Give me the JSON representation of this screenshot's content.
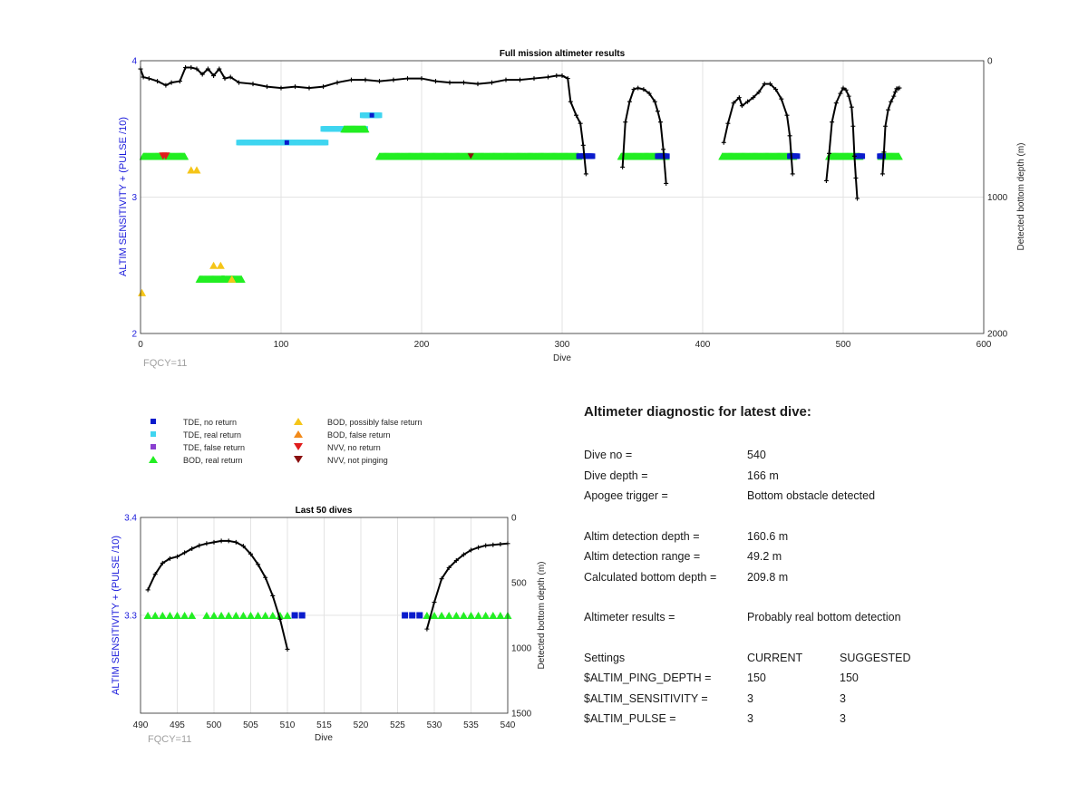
{
  "chart_data": [
    {
      "type": "scatter",
      "title": "Full mission altimeter results",
      "xlabel": "Dive",
      "ylabel": "ALTIM SENSITIVITY + (PULSE /10)",
      "y2label": "Detected bottom depth (m)",
      "xlim": [
        0,
        600
      ],
      "ylim": [
        2,
        4
      ],
      "y2lim": [
        0,
        2000
      ],
      "y2_reversed": true,
      "xticks": [
        "0",
        "100",
        "200",
        "300",
        "400",
        "500",
        "600"
      ],
      "yticks": [
        "2",
        "3",
        "4"
      ],
      "y2ticks": [
        "0",
        "1000",
        "2000"
      ],
      "grid": true,
      "annotation": "FQCY=11",
      "bod_real_segments": [
        {
          "x": [
            2,
            32
          ],
          "y": 3.3
        },
        {
          "x": [
            42,
            60
          ],
          "y": 2.4
        },
        {
          "x": [
            58,
            72
          ],
          "y": 2.4
        },
        {
          "x": [
            145,
            160
          ],
          "y": 3.5
        },
        {
          "x": [
            170,
            312
          ],
          "y": 3.3
        },
        {
          "x": [
            342,
            374
          ],
          "y": 3.3
        },
        {
          "x": [
            414,
            465
          ],
          "y": 3.3
        },
        {
          "x": [
            490,
            512
          ],
          "y": 3.3
        },
        {
          "x": [
            527,
            540
          ],
          "y": 3.3
        }
      ],
      "tde_real_segments": [
        {
          "x": [
            70,
            132
          ],
          "y": 3.4
        },
        {
          "x": [
            130,
            160
          ],
          "y": 3.5
        },
        {
          "x": [
            158,
            170
          ],
          "y": 3.6
        }
      ],
      "tde_no_return_segments": [
        {
          "x": [
            312,
            322
          ],
          "y": 3.3
        },
        {
          "x": [
            368,
            375
          ],
          "y": 3.3
        },
        {
          "x": [
            462,
            468
          ],
          "y": 3.3
        },
        {
          "x": [
            510,
            514
          ],
          "y": 3.3
        },
        {
          "x": [
            526,
            529
          ],
          "y": 3.3
        }
      ],
      "bod_possibly_false": [
        {
          "x": 1,
          "y": 2.3
        },
        {
          "x": 36,
          "y": 3.2
        },
        {
          "x": 40,
          "y": 3.2
        },
        {
          "x": 52,
          "y": 2.5
        },
        {
          "x": 57,
          "y": 2.5
        },
        {
          "x": 65,
          "y": 2.4
        }
      ],
      "nvv_no_return": [
        {
          "x": 16,
          "y": 3.3
        },
        {
          "x": 18,
          "y": 3.3
        }
      ],
      "nvv_not_pinging": [
        {
          "x": 235,
          "y": 3.3
        }
      ],
      "depth_series": [
        {
          "x": [
            0,
            2,
            6,
            12,
            18,
            22,
            28,
            32,
            36,
            40,
            44,
            48,
            52,
            56,
            60,
            64,
            70,
            80,
            90,
            100,
            110,
            120,
            130,
            140,
            150,
            160,
            170,
            180,
            190,
            200,
            210,
            220,
            230,
            240,
            250,
            260,
            270,
            280,
            290,
            296,
            300,
            304,
            306,
            310,
            313,
            315,
            317
          ],
          "y": [
            60,
            120,
            130,
            150,
            180,
            160,
            150,
            50,
            50,
            60,
            100,
            60,
            110,
            60,
            130,
            120,
            160,
            170,
            190,
            200,
            190,
            200,
            190,
            160,
            140,
            140,
            150,
            140,
            130,
            130,
            150,
            160,
            160,
            170,
            160,
            140,
            140,
            130,
            120,
            110,
            110,
            130,
            300,
            400,
            460,
            620,
            830
          ]
        },
        {
          "x": [
            343,
            345,
            348,
            351,
            354,
            358,
            362,
            366,
            368,
            370,
            372,
            374
          ],
          "y": [
            780,
            450,
            300,
            210,
            200,
            210,
            240,
            300,
            370,
            450,
            650,
            900
          ]
        },
        {
          "x": [
            415,
            418,
            422,
            426,
            428,
            432,
            436,
            440,
            444,
            448,
            452,
            456,
            460,
            462,
            464
          ],
          "y": [
            600,
            460,
            310,
            270,
            330,
            300,
            270,
            230,
            170,
            170,
            210,
            280,
            400,
            550,
            830
          ]
        },
        {
          "x": [
            488,
            490,
            492,
            495,
            498,
            500,
            502,
            504,
            506,
            507,
            508,
            509,
            510
          ],
          "y": [
            880,
            680,
            450,
            310,
            240,
            200,
            215,
            260,
            340,
            480,
            700,
            860,
            1010
          ]
        },
        {
          "x": [
            528,
            529,
            530,
            532,
            534,
            536,
            537,
            538,
            539,
            540
          ],
          "y": [
            830,
            670,
            480,
            360,
            300,
            260,
            230,
            205,
            205,
            200
          ]
        }
      ]
    },
    {
      "type": "scatter",
      "title": "Last 50 dives",
      "xlabel": "Dive",
      "ylabel": "ALTIM SENSITIVITY + (PULSE /10)",
      "y2label": "Detected bottom depth (m)",
      "xlim": [
        490,
        540
      ],
      "ylim": [
        3.2,
        3.4
      ],
      "y2lim": [
        0,
        1500
      ],
      "y2_reversed": true,
      "xticks": [
        "490",
        "495",
        "500",
        "505",
        "510",
        "515",
        "520",
        "525",
        "530",
        "535",
        "540"
      ],
      "yticks": [
        "3.3",
        "3.4"
      ],
      "y2ticks": [
        "0",
        "500",
        "1000",
        "1500"
      ],
      "grid": true,
      "annotation": "FQCY=11",
      "bod_real_dives": [
        491,
        492,
        493,
        494,
        495,
        496,
        497,
        499,
        500,
        501,
        502,
        503,
        504,
        505,
        506,
        507,
        508,
        509,
        510,
        529,
        530,
        531,
        532,
        533,
        534,
        535,
        536,
        537,
        538,
        539,
        540
      ],
      "tde_no_return_dives": [
        511,
        512,
        526,
        527,
        528
      ],
      "marker_y": 3.3,
      "depth_series": [
        {
          "x": [
            491,
            492,
            493,
            494,
            495,
            496,
            497,
            498,
            499,
            500,
            501,
            502,
            503,
            504,
            505,
            506,
            507,
            508,
            509,
            510
          ],
          "y": [
            555,
            435,
            350,
            315,
            300,
            270,
            240,
            215,
            200,
            190,
            180,
            180,
            190,
            220,
            280,
            360,
            460,
            600,
            780,
            1010
          ]
        },
        {
          "x": [
            529,
            530,
            531,
            532,
            533,
            534,
            535,
            536,
            537,
            538,
            539,
            540
          ],
          "y": [
            855,
            650,
            470,
            385,
            330,
            285,
            250,
            230,
            215,
            210,
            205,
            200
          ]
        }
      ]
    }
  ],
  "legend": {
    "items": [
      {
        "label": "TDE, no return",
        "color": "#0a1bcc",
        "marker": "square"
      },
      {
        "label": "TDE, real return",
        "color": "#3fd5f0",
        "marker": "square"
      },
      {
        "label": "TDE, false return",
        "color": "#8a3fd0",
        "marker": "square"
      },
      {
        "label": "BOD, real return",
        "color": "#22ee22",
        "marker": "triangle-up"
      },
      {
        "label": "BOD, possibly false return",
        "color": "#f5c518",
        "marker": "triangle-up"
      },
      {
        "label": "BOD, false return",
        "color": "#f28a1a",
        "marker": "triangle-up"
      },
      {
        "label": "NVV, no return",
        "color": "#e01d1d",
        "marker": "triangle-down"
      },
      {
        "label": "NVV, not pinging",
        "color": "#8a1010",
        "marker": "triangle-down"
      }
    ]
  },
  "diagnostic": {
    "title": "Altimeter diagnostic for latest dive:",
    "dive_no_label": "Dive no =",
    "dive_no": "540",
    "dive_depth_label": "Dive depth =",
    "dive_depth": "166 m",
    "apogee_label": "Apogee trigger =",
    "apogee": "Bottom obstacle detected",
    "det_depth_label": "Altim detection depth =",
    "det_depth": "160.6 m",
    "det_range_label": "Altim detection range =",
    "det_range": "49.2 m",
    "calc_bottom_label": "Calculated bottom depth =",
    "calc_bottom": "209.8 m",
    "results_label": "Altimeter results =",
    "results": "Probably real bottom detection",
    "settings": {
      "header": [
        "Settings",
        "CURRENT",
        "SUGGESTED"
      ],
      "rows": [
        [
          "$ALTIM_PING_DEPTH =",
          "150",
          "150"
        ],
        [
          "$ALTIM_SENSITIVITY =",
          "3",
          "3"
        ],
        [
          "$ALTIM_PULSE =",
          "3",
          "3"
        ]
      ]
    }
  }
}
